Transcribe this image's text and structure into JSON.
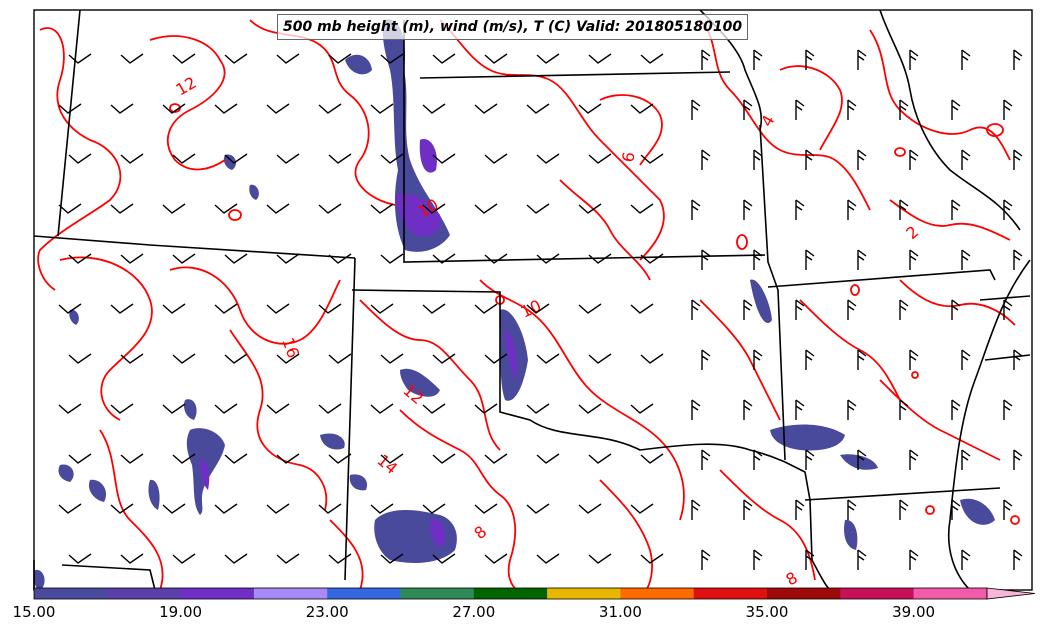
{
  "title": "500 mb height (m), wind (m/s), T (C) Valid: 201805180100",
  "colorbar": {
    "colors": [
      "#4a4a9c",
      "#5a3fa8",
      "#6f2fc4",
      "#a78af5",
      "#3568e0",
      "#2e8b57",
      "#006400",
      "#e8b800",
      "#ff6a00",
      "#e01010",
      "#9c0a0a",
      "#c8105a",
      "#f25aaa"
    ],
    "extend_color": "#f7b6d8",
    "ticks": [
      "15.00",
      "19.00",
      "23.00",
      "27.00",
      "31.00",
      "35.00",
      "39.00"
    ]
  },
  "contour_labels": [
    "12",
    "16",
    "12",
    "14",
    "8",
    "10",
    "6",
    "4",
    "2",
    "8",
    "10"
  ],
  "style": {
    "contour_color": "#ff0000",
    "border_color": "#000000",
    "barb_color": "#000000"
  }
}
